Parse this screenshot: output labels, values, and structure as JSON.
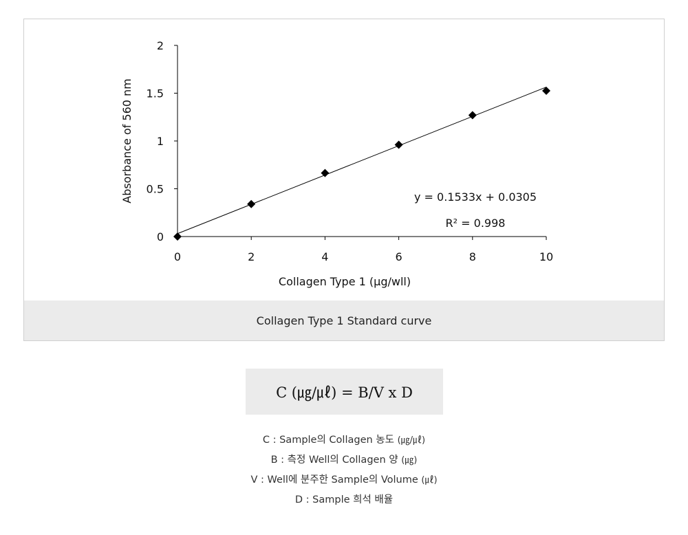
{
  "chart_data": {
    "type": "scatter",
    "x": [
      0,
      2,
      4,
      6,
      8,
      10
    ],
    "y": [
      0,
      0.34,
      0.665,
      0.96,
      1.27,
      1.525
    ],
    "xlabel": "Collagen Type 1 (μg/wll)",
    "ylabel": "Absorbance of 560 nm",
    "xlim": [
      0,
      10
    ],
    "ylim": [
      0,
      2
    ],
    "x_ticks": [
      "0",
      "2",
      "4",
      "6",
      "8",
      "10"
    ],
    "y_ticks": [
      "0",
      "0.5",
      "1",
      "1.5",
      "2"
    ],
    "x_tick_values": [
      0,
      2,
      4,
      6,
      8,
      10
    ],
    "y_tick_values": [
      0,
      0.5,
      1,
      1.5,
      2
    ],
    "trendline": {
      "slope": 0.1533,
      "intercept": 0.0305
    },
    "annotations": {
      "equation": "y = 0.1533x + 0.0305",
      "r_squared": "R² = 0.998"
    },
    "grid": false,
    "marker": "diamond",
    "colors": {
      "marker": "#000000",
      "line": "#000000"
    }
  },
  "figure": {
    "caption": "Collagen Type 1 Standard curve"
  },
  "formula": {
    "text": "C (㎍/㎕) = B/V x D"
  },
  "legend": {
    "c": "C : Sample의 Collagen 농도",
    "c_unit": "(㎍/㎕)",
    "b": "B : 측정 Well의 Collagen 양",
    "b_unit": "(㎍)",
    "v": "V : Well에 분주한 Sample의 Volume",
    "v_unit": "(㎕)",
    "d": "D : Sample 희석 배율"
  }
}
